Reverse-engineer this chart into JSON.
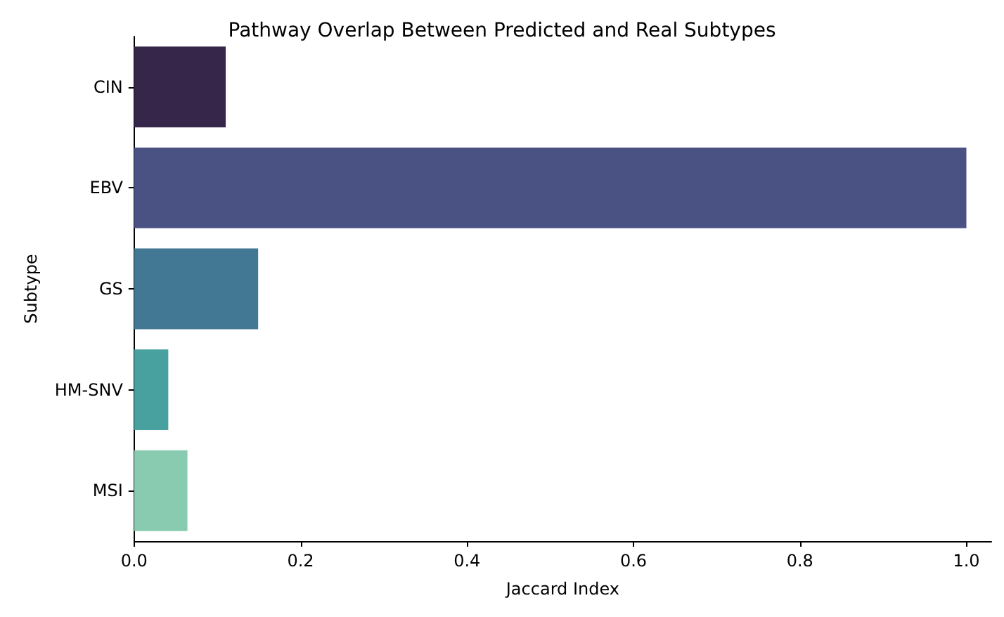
{
  "chart_data": {
    "type": "bar",
    "orientation": "horizontal",
    "title": "Pathway Overlap Between Predicted and Real Subtypes",
    "xlabel": "Jaccard Index",
    "ylabel": "Subtype",
    "categories": [
      "CIN",
      "EBV",
      "GS",
      "HM-SNV",
      "MSI"
    ],
    "values": [
      0.11,
      1.0,
      0.149,
      0.041,
      0.064
    ],
    "colors": [
      "#35264a",
      "#4a5284",
      "#437895",
      "#48a19f",
      "#89cbb0"
    ],
    "xlim": [
      0,
      1.03
    ],
    "xticks": [
      {
        "value": 0,
        "label": "0.0"
      },
      0.2,
      0.4,
      0.6,
      0.8,
      {
        "value": 1,
        "label": "1.0"
      }
    ],
    "grid": false
  }
}
